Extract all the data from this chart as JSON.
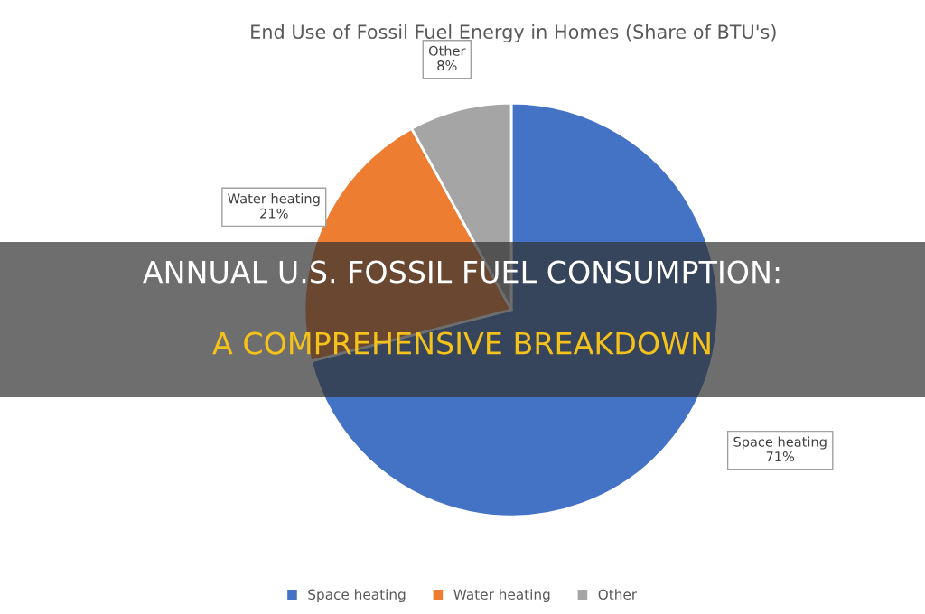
{
  "chart_data": {
    "type": "pie",
    "title": "End Use of Fossil Fuel Energy in Homes (Share of BTU's)",
    "categories": [
      "Space heating",
      "Water heating",
      "Other"
    ],
    "values": [
      71,
      21,
      8
    ],
    "colors": [
      "#4472c4",
      "#ed7d31",
      "#a5a5a5"
    ],
    "value_labels": [
      "71%",
      "21%",
      "8%"
    ],
    "legend": "bottom",
    "annotations": [
      "ANNUAL U.S. FOSSIL FUEL CONSUMPTION:",
      "A COMPREHENSIVE BREAKDOWN"
    ]
  }
}
